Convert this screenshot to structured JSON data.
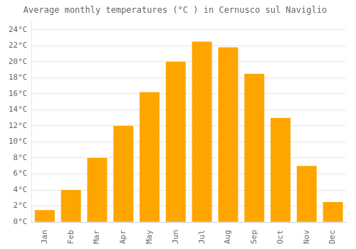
{
  "chart_data": {
    "type": "bar",
    "title": "Average monthly temperatures (°C ) in Cernusco sul Naviglio",
    "categories": [
      "Jan",
      "Feb",
      "Mar",
      "Apr",
      "May",
      "Jun",
      "Jul",
      "Aug",
      "Sep",
      "Oct",
      "Nov",
      "Dec"
    ],
    "values": [
      1.5,
      4.0,
      8.0,
      12.0,
      16.2,
      20.0,
      22.5,
      21.8,
      18.5,
      13.0,
      7.0,
      2.5
    ],
    "color": "#FFA500",
    "ylim": [
      0,
      25
    ],
    "yticks": [
      {
        "value": 0,
        "label": "0°C"
      },
      {
        "value": 2,
        "label": "2°C"
      },
      {
        "value": 4,
        "label": "4°C"
      },
      {
        "value": 6,
        "label": "6°C"
      },
      {
        "value": 8,
        "label": "8°C"
      },
      {
        "value": 10,
        "label": "10°C"
      },
      {
        "value": 12,
        "label": "12°C"
      },
      {
        "value": 14,
        "label": "14°C"
      },
      {
        "value": 16,
        "label": "16°C"
      },
      {
        "value": 18,
        "label": "18°C"
      },
      {
        "value": 20,
        "label": "20°C"
      },
      {
        "value": 22,
        "label": "22°C"
      },
      {
        "value": 24,
        "label": "24°C"
      }
    ],
    "grid": true
  }
}
